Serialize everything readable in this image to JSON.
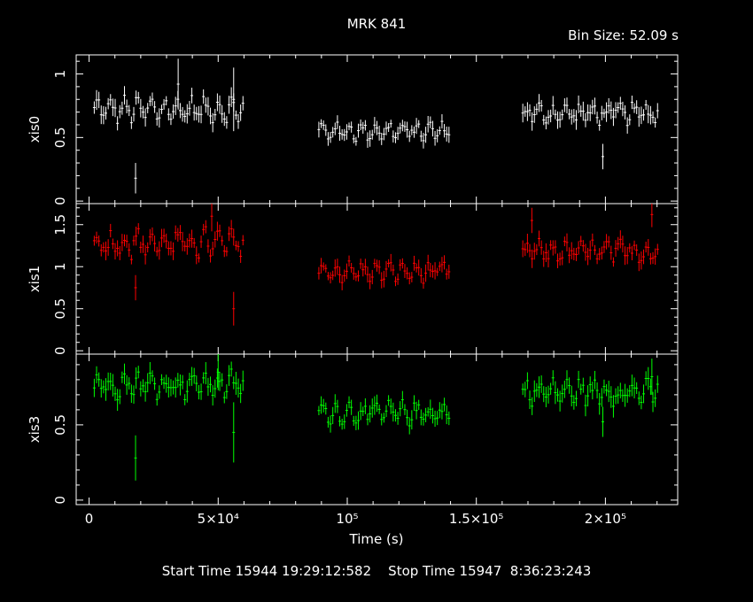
{
  "header": {
    "title": "MRK 841",
    "bin_size_label": "Bin Size: 52.09 s"
  },
  "footer": {
    "times": "Start Time 15944 19:29:12:582    Stop Time 15947  8:36:23:243"
  },
  "colors": {
    "background": "#000000",
    "axes": "#ffffff",
    "xis0": "#ffffff",
    "xis1": "#ff0000",
    "xis3": "#00ff00"
  },
  "chart_data": {
    "type": "scatter",
    "title": "MRK 841",
    "xlabel": "Time (s)",
    "xlim": [
      -5000,
      228000
    ],
    "x_ticks": [
      {
        "value": 0,
        "label": "0"
      },
      {
        "value": 50000,
        "label": "5×10⁴"
      },
      {
        "value": 100000,
        "label": "10⁵"
      },
      {
        "value": 150000,
        "label": "1.5×10⁵"
      },
      {
        "value": 200000,
        "label": "2×10⁵"
      }
    ],
    "panels": [
      {
        "name": "xis0",
        "ylabel": "xis0",
        "color": "#ffffff",
        "ylim": [
          -0.02,
          1.15
        ],
        "y_ticks": [
          {
            "value": 0,
            "label": "0"
          },
          {
            "value": 0.5,
            "label": "0.5"
          },
          {
            "value": 1,
            "label": "1"
          }
        ],
        "segments": [
          {
            "x_start": 2000,
            "x_end": 60000,
            "mean": 0.72,
            "amp": 0.07,
            "scatter": 0.05,
            "err": 0.06
          },
          {
            "x_start": 89000,
            "x_end": 140000,
            "mean": 0.55,
            "amp": 0.05,
            "scatter": 0.04,
            "err": 0.05
          },
          {
            "x_start": 168000,
            "x_end": 221000,
            "mean": 0.69,
            "amp": 0.05,
            "scatter": 0.05,
            "err": 0.06
          }
        ],
        "outliers": [
          {
            "x": 18000,
            "y": 0.18,
            "err": 0.12
          },
          {
            "x": 34500,
            "y": 0.92,
            "err": 0.2
          },
          {
            "x": 56000,
            "y": 0.8,
            "err": 0.25
          },
          {
            "x": 199000,
            "y": 0.35,
            "err": 0.1
          }
        ]
      },
      {
        "name": "xis1",
        "ylabel": "xis1",
        "color": "#ff0000",
        "ylim": [
          -0.04,
          1.75
        ],
        "y_ticks": [
          {
            "value": 0,
            "label": "0"
          },
          {
            "value": 0.5,
            "label": "0.5"
          },
          {
            "value": 1,
            "label": "1"
          },
          {
            "value": 1.5,
            "label": "1.5"
          }
        ],
        "segments": [
          {
            "x_start": 2000,
            "x_end": 60000,
            "mean": 1.28,
            "amp": 0.12,
            "scatter": 0.09,
            "err": 0.09
          },
          {
            "x_start": 89000,
            "x_end": 140000,
            "mean": 0.94,
            "amp": 0.07,
            "scatter": 0.07,
            "err": 0.08
          },
          {
            "x_start": 168000,
            "x_end": 221000,
            "mean": 1.18,
            "amp": 0.08,
            "scatter": 0.08,
            "err": 0.09
          }
        ],
        "outliers": [
          {
            "x": 18000,
            "y": 0.75,
            "err": 0.15
          },
          {
            "x": 47500,
            "y": 1.6,
            "err": 0.18
          },
          {
            "x": 56000,
            "y": 0.5,
            "err": 0.2
          },
          {
            "x": 171500,
            "y": 1.55,
            "err": 0.15
          },
          {
            "x": 218000,
            "y": 1.62,
            "err": 0.15
          }
        ]
      },
      {
        "name": "xis3",
        "ylabel": "xis3",
        "color": "#00ff00",
        "ylim": [
          -0.03,
          0.97
        ],
        "y_ticks": [
          {
            "value": 0,
            "label": "0"
          },
          {
            "value": 0.5,
            "label": "0.5"
          }
        ],
        "segments": [
          {
            "x_start": 2000,
            "x_end": 60000,
            "mean": 0.77,
            "amp": 0.06,
            "scatter": 0.05,
            "err": 0.06
          },
          {
            "x_start": 89000,
            "x_end": 140000,
            "mean": 0.58,
            "amp": 0.05,
            "scatter": 0.04,
            "err": 0.05
          },
          {
            "x_start": 168000,
            "x_end": 221000,
            "mean": 0.72,
            "amp": 0.05,
            "scatter": 0.05,
            "err": 0.06
          }
        ],
        "outliers": [
          {
            "x": 18000,
            "y": 0.28,
            "err": 0.15
          },
          {
            "x": 50000,
            "y": 0.85,
            "err": 0.12
          },
          {
            "x": 56000,
            "y": 0.45,
            "err": 0.2
          },
          {
            "x": 199000,
            "y": 0.52,
            "err": 0.1
          },
          {
            "x": 218000,
            "y": 0.82,
            "err": 0.12
          }
        ]
      }
    ]
  }
}
